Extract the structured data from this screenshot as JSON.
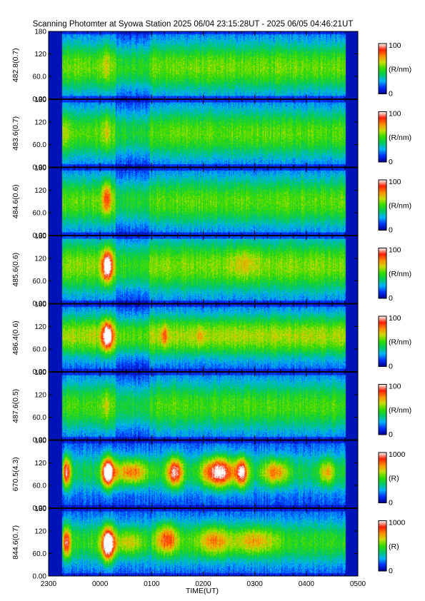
{
  "chart_data": {
    "type": "heatmap",
    "title": "Scanning Photomter at Syowa Station  2025 06/04 23:15:28UT - 2025 06/05 04:46:21UT",
    "xlabel": "TIME(UT)",
    "x_ticks": [
      "2300",
      "0000",
      "0100",
      "0200",
      "0300",
      "0400",
      "0500"
    ],
    "xlim_hours": [
      23.0,
      29.0
    ],
    "y_ticks": [
      "0.00",
      "60.0",
      "120",
      "180"
    ],
    "ylim": [
      0,
      180
    ],
    "grid": false,
    "colorscale": [
      "#00008b",
      "#0030ff",
      "#00b4ff",
      "#00c864",
      "#32dc00",
      "#c8dc00",
      "#ff8c00",
      "#ff1e00",
      "#ffffff"
    ],
    "panels": [
      {
        "ylabel": "482.8(0.7)",
        "cb_max": "100",
        "cb_min": "0",
        "cb_unit": "(R/nm)",
        "base": 0.42,
        "band_mid": 85,
        "band_width": 70,
        "events": [
          {
            "t": 24.12,
            "dt": 0.07,
            "y": 95,
            "dy": 60,
            "amp": 0.12
          }
        ]
      },
      {
        "ylabel": "483.6(0.7)",
        "cb_max": "100",
        "cb_min": "0",
        "cb_unit": "(R/nm)",
        "base": 0.4,
        "band_mid": 90,
        "band_width": 70,
        "events": [
          {
            "t": 24.12,
            "dt": 0.08,
            "y": 95,
            "dy": 55,
            "amp": 0.15
          },
          {
            "t": 23.3,
            "dt": 0.1,
            "y": 90,
            "dy": 60,
            "amp": 0.08
          }
        ]
      },
      {
        "ylabel": "484.6(0.6)",
        "cb_max": "100",
        "cb_min": "0",
        "cb_unit": "(R/nm)",
        "base": 0.4,
        "band_mid": 90,
        "band_width": 70,
        "events": [
          {
            "t": 24.13,
            "dt": 0.09,
            "y": 100,
            "dy": 45,
            "amp": 0.35
          }
        ]
      },
      {
        "ylabel": "485.6(0.6)",
        "cb_max": "100",
        "cb_min": "0",
        "cb_unit": "(R/nm)",
        "base": 0.44,
        "band_mid": 100,
        "band_width": 75,
        "events": [
          {
            "t": 24.14,
            "dt": 0.1,
            "y": 100,
            "dy": 40,
            "amp": 0.62
          },
          {
            "t": 26.8,
            "dt": 0.25,
            "y": 110,
            "dy": 40,
            "amp": 0.12
          }
        ]
      },
      {
        "ylabel": "486.4(0.6)",
        "cb_max": "100",
        "cb_min": "0",
        "cb_unit": "(R/nm)",
        "base": 0.48,
        "band_mid": 95,
        "band_width": 60,
        "events": [
          {
            "t": 24.14,
            "dt": 0.1,
            "y": 95,
            "dy": 38,
            "amp": 0.6
          },
          {
            "t": 25.25,
            "dt": 0.07,
            "y": 95,
            "dy": 30,
            "amp": 0.22
          },
          {
            "t": 25.95,
            "dt": 0.07,
            "y": 95,
            "dy": 30,
            "amp": 0.15
          }
        ]
      },
      {
        "ylabel": "487.6(0.5)",
        "cb_max": "100",
        "cb_min": "0",
        "cb_unit": "(R/nm)",
        "base": 0.38,
        "band_mid": 90,
        "band_width": 70,
        "events": [
          {
            "t": 24.12,
            "dt": 0.08,
            "y": 90,
            "dy": 50,
            "amp": 0.12
          }
        ]
      },
      {
        "ylabel": "670.5(4.3)",
        "cb_max": "1000",
        "cb_min": "0",
        "cb_unit": "(R)",
        "base": 0.28,
        "band_mid": 95,
        "band_width": 55,
        "events": [
          {
            "t": 23.35,
            "dt": 0.08,
            "y": 95,
            "dy": 40,
            "amp": 0.55
          },
          {
            "t": 24.15,
            "dt": 0.12,
            "y": 95,
            "dy": 40,
            "amp": 0.75
          },
          {
            "t": 24.6,
            "dt": 0.35,
            "y": 95,
            "dy": 35,
            "amp": 0.45
          },
          {
            "t": 25.45,
            "dt": 0.15,
            "y": 95,
            "dy": 40,
            "amp": 0.6
          },
          {
            "t": 26.3,
            "dt": 0.3,
            "y": 95,
            "dy": 40,
            "amp": 0.65
          },
          {
            "t": 26.75,
            "dt": 0.12,
            "y": 95,
            "dy": 40,
            "amp": 0.6
          },
          {
            "t": 27.4,
            "dt": 0.25,
            "y": 95,
            "dy": 35,
            "amp": 0.38
          },
          {
            "t": 28.4,
            "dt": 0.15,
            "y": 95,
            "dy": 35,
            "amp": 0.3
          }
        ]
      },
      {
        "ylabel": "844.6(0.7)",
        "cb_max": "1000",
        "cb_min": "0",
        "cb_unit": "(R)",
        "base": 0.35,
        "band_mid": 90,
        "band_width": 60,
        "events": [
          {
            "t": 23.35,
            "dt": 0.08,
            "y": 90,
            "dy": 40,
            "amp": 0.45
          },
          {
            "t": 24.15,
            "dt": 0.12,
            "y": 85,
            "dy": 45,
            "amp": 0.75
          },
          {
            "t": 24.55,
            "dt": 0.3,
            "y": 90,
            "dy": 35,
            "amp": 0.25
          },
          {
            "t": 25.3,
            "dt": 0.2,
            "y": 100,
            "dy": 40,
            "amp": 0.4
          },
          {
            "t": 26.2,
            "dt": 0.3,
            "y": 95,
            "dy": 40,
            "amp": 0.3
          },
          {
            "t": 27.0,
            "dt": 0.4,
            "y": 95,
            "dy": 35,
            "amp": 0.25
          }
        ]
      }
    ]
  }
}
